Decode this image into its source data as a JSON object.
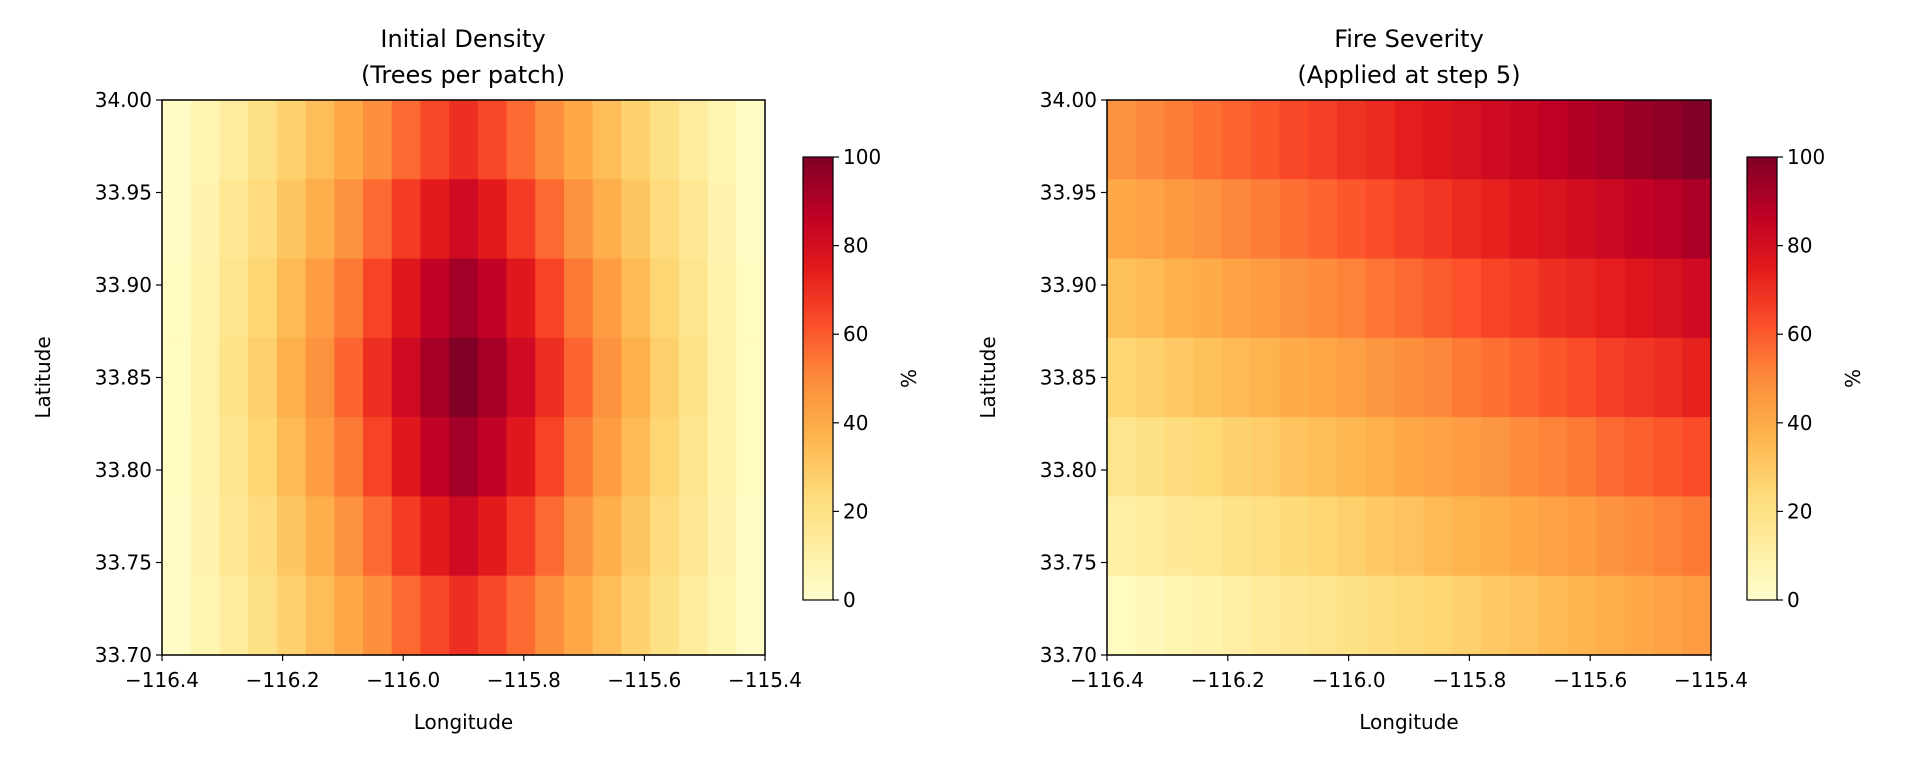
{
  "colormap": [
    "#ffffcc",
    "#ffeda0",
    "#fed976",
    "#feb24c",
    "#fd8d3c",
    "#fc4e2a",
    "#e31a1c",
    "#bd0026",
    "#800026"
  ],
  "chart_data": [
    {
      "type": "heatmap",
      "title": [
        "Initial Density",
        "(Trees per patch)"
      ],
      "xlabel": "Longitude",
      "ylabel": "Latitude",
      "xlim": [
        -116.4,
        -115.4
      ],
      "ylim": [
        33.7,
        34.0
      ],
      "xticks": [
        "−116.4",
        "−116.2",
        "−116.0",
        "−115.8",
        "−115.6",
        "−115.4"
      ],
      "yticks": [
        "33.70",
        "33.75",
        "33.80",
        "33.85",
        "33.90",
        "33.95",
        "34.00"
      ],
      "colorbar": {
        "label": "%",
        "range": [
          0,
          100
        ],
        "ticks": [
          "0",
          "20",
          "40",
          "60",
          "80",
          "100"
        ]
      },
      "rows_top_to_bottom": [
        [
          2,
          7,
          13,
          20,
          27,
          34,
          41,
          49,
          57,
          64,
          70,
          64,
          57,
          49,
          41,
          34,
          27,
          20,
          13,
          7,
          2
        ],
        [
          2,
          8,
          16,
          23,
          31,
          39,
          48,
          57,
          67,
          75,
          82,
          75,
          67,
          57,
          48,
          39,
          31,
          23,
          16,
          8,
          2
        ],
        [
          3,
          9,
          18,
          26,
          35,
          45,
          54,
          65,
          76,
          86,
          93,
          86,
          76,
          65,
          54,
          45,
          35,
          26,
          18,
          9,
          3
        ],
        [
          3,
          10,
          19,
          28,
          38,
          48,
          58,
          70,
          82,
          92,
          100,
          92,
          82,
          70,
          58,
          48,
          38,
          28,
          19,
          10,
          3
        ],
        [
          3,
          9,
          18,
          26,
          35,
          45,
          54,
          65,
          76,
          86,
          93,
          86,
          76,
          65,
          54,
          45,
          35,
          26,
          18,
          9,
          3
        ],
        [
          2,
          8,
          16,
          23,
          31,
          39,
          48,
          57,
          67,
          75,
          82,
          75,
          67,
          57,
          48,
          39,
          31,
          23,
          16,
          8,
          2
        ],
        [
          2,
          7,
          13,
          20,
          27,
          34,
          41,
          49,
          57,
          64,
          70,
          64,
          57,
          49,
          41,
          34,
          27,
          20,
          13,
          7,
          2
        ]
      ]
    },
    {
      "type": "heatmap",
      "title": [
        "Fire Severity",
        "(Applied at step 5)"
      ],
      "xlabel": "Longitude",
      "ylabel": "Latitude",
      "xlim": [
        -116.4,
        -115.4
      ],
      "ylim": [
        33.7,
        34.0
      ],
      "xticks": [
        "−116.4",
        "−116.2",
        "−116.0",
        "−115.8",
        "−115.6",
        "−115.4"
      ],
      "yticks": [
        "33.70",
        "33.75",
        "33.80",
        "33.85",
        "33.90",
        "33.95",
        "34.00"
      ],
      "colorbar": {
        "label": "%",
        "range": [
          0,
          100
        ],
        "ticks": [
          "0",
          "20",
          "40",
          "60",
          "80",
          "100"
        ]
      },
      "rows_top_to_bottom": [
        [
          48,
          51,
          53,
          56,
          58,
          61,
          64,
          66,
          69,
          71,
          74,
          77,
          79,
          82,
          84,
          87,
          90,
          92,
          95,
          97,
          100
        ],
        [
          41,
          43,
          46,
          48,
          51,
          53,
          56,
          58,
          61,
          63,
          66,
          68,
          71,
          73,
          76,
          78,
          81,
          83,
          86,
          88,
          91
        ],
        [
          33,
          35,
          38,
          40,
          43,
          45,
          48,
          50,
          52,
          55,
          57,
          60,
          62,
          65,
          67,
          70,
          72,
          74,
          77,
          79,
          82
        ],
        [
          26,
          28,
          30,
          33,
          35,
          37,
          40,
          42,
          44,
          47,
          49,
          51,
          54,
          56,
          58,
          61,
          63,
          66,
          68,
          70,
          73
        ],
        [
          18,
          20,
          23,
          25,
          27,
          29,
          32,
          34,
          36,
          38,
          41,
          43,
          45,
          47,
          50,
          52,
          54,
          57,
          59,
          61,
          63
        ],
        [
          11,
          13,
          15,
          17,
          19,
          21,
          24,
          26,
          28,
          30,
          32,
          35,
          37,
          39,
          41,
          43,
          45,
          48,
          50,
          52,
          54
        ],
        [
          3,
          5,
          7,
          9,
          11,
          14,
          16,
          18,
          20,
          22,
          24,
          26,
          28,
          30,
          32,
          35,
          37,
          39,
          41,
          43,
          45
        ]
      ]
    }
  ]
}
